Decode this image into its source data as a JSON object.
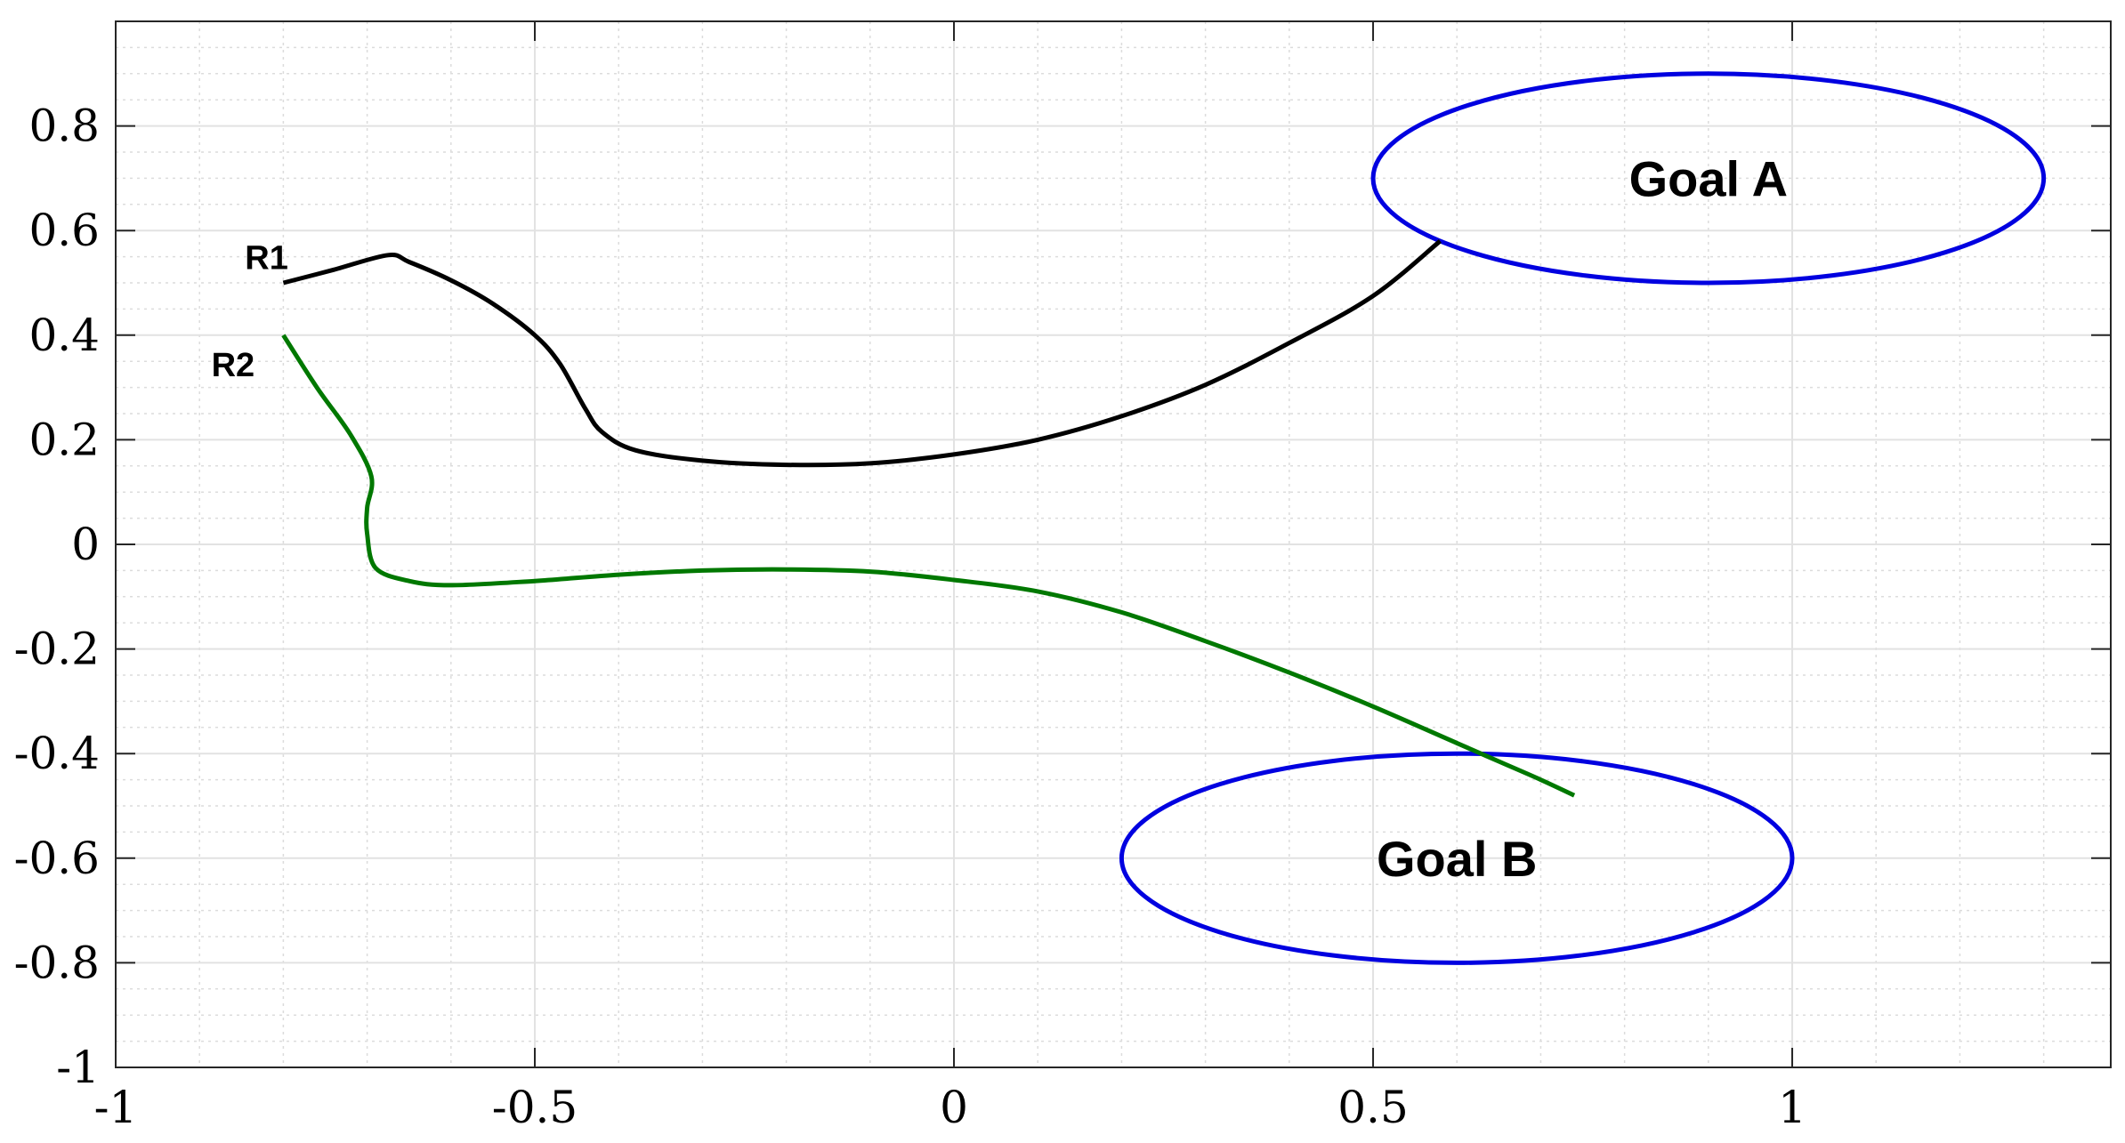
{
  "chart_data": {
    "type": "line",
    "title": "",
    "xlabel": "",
    "ylabel": "",
    "xlim": [
      -1,
      1.38
    ],
    "ylim": [
      -1,
      1
    ],
    "grid": true,
    "minor_grid": true,
    "x_ticks": [
      {
        "value": -1,
        "label": "-1"
      },
      {
        "value": -0.5,
        "label": "-0.5"
      },
      {
        "value": 0,
        "label": "0"
      },
      {
        "value": 0.5,
        "label": "0.5"
      },
      {
        "value": 1,
        "label": "1"
      }
    ],
    "y_ticks": [
      {
        "value": 0.8,
        "label": "0.8"
      },
      {
        "value": 0.6,
        "label": "0.6"
      },
      {
        "value": 0.4,
        "label": "0.4"
      },
      {
        "value": 0.2,
        "label": "0.2"
      },
      {
        "value": 0,
        "label": "0"
      },
      {
        "value": -0.2,
        "label": "-0.2"
      },
      {
        "value": -0.4,
        "label": "-0.4"
      },
      {
        "value": -0.6,
        "label": "-0.6"
      },
      {
        "value": -0.8,
        "label": "-0.8"
      },
      {
        "value": -1,
        "label": "-1"
      }
    ],
    "series": [
      {
        "name": "R1",
        "color": "#000000",
        "points": [
          [
            -0.8,
            0.5
          ],
          [
            -0.74,
            0.525
          ],
          [
            -0.675,
            0.553
          ],
          [
            -0.65,
            0.54
          ],
          [
            -0.6,
            0.505
          ],
          [
            -0.55,
            0.46
          ],
          [
            -0.5,
            0.4
          ],
          [
            -0.47,
            0.345
          ],
          [
            -0.44,
            0.26
          ],
          [
            -0.42,
            0.215
          ],
          [
            -0.38,
            0.18
          ],
          [
            -0.3,
            0.16
          ],
          [
            -0.2,
            0.152
          ],
          [
            -0.1,
            0.155
          ],
          [
            0,
            0.172
          ],
          [
            0.1,
            0.2
          ],
          [
            0.2,
            0.245
          ],
          [
            0.3,
            0.305
          ],
          [
            0.4,
            0.385
          ],
          [
            0.5,
            0.475
          ],
          [
            0.58,
            0.58
          ]
        ],
        "label_at": [
          -0.82,
          0.55
        ]
      },
      {
        "name": "R2",
        "color": "#007800",
        "points": [
          [
            -0.8,
            0.4
          ],
          [
            -0.76,
            0.3
          ],
          [
            -0.72,
            0.21
          ],
          [
            -0.695,
            0.13
          ],
          [
            -0.7,
            0.07
          ],
          [
            -0.7,
            0.02
          ],
          [
            -0.69,
            -0.045
          ],
          [
            -0.65,
            -0.07
          ],
          [
            -0.6,
            -0.078
          ],
          [
            -0.5,
            -0.07
          ],
          [
            -0.4,
            -0.058
          ],
          [
            -0.3,
            -0.05
          ],
          [
            -0.2,
            -0.048
          ],
          [
            -0.1,
            -0.052
          ],
          [
            0,
            -0.068
          ],
          [
            0.1,
            -0.09
          ],
          [
            0.2,
            -0.13
          ],
          [
            0.3,
            -0.185
          ],
          [
            0.4,
            -0.245
          ],
          [
            0.5,
            -0.31
          ],
          [
            0.6,
            -0.38
          ],
          [
            0.65,
            -0.415
          ],
          [
            0.7,
            -0.45
          ],
          [
            0.74,
            -0.48
          ]
        ],
        "label_at": [
          -0.86,
          0.345
        ]
      }
    ],
    "regions": [
      {
        "label": "Goal A",
        "color": "#0000e0",
        "center": [
          0.9,
          0.7
        ],
        "radius_x": 0.4,
        "radius_y": 0.2
      },
      {
        "label": "Goal B",
        "color": "#0000e0",
        "center": [
          0.6,
          -0.6
        ],
        "radius_x": 0.4,
        "radius_y": 0.2
      }
    ]
  }
}
